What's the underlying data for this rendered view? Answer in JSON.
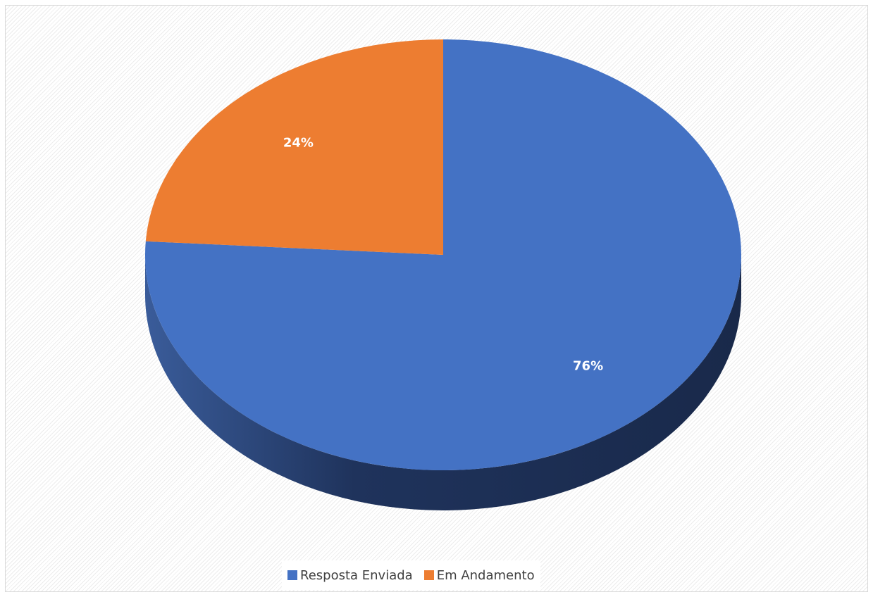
{
  "chart_data": {
    "type": "pie",
    "title": "",
    "categories": [
      "Resposta Enviada",
      "Em Andamento"
    ],
    "values": [
      76,
      24
    ],
    "data_labels": [
      "76%",
      "24%"
    ],
    "colors": [
      "#4472C4",
      "#ED7D31"
    ],
    "style": "3d",
    "legend": "bottom"
  }
}
